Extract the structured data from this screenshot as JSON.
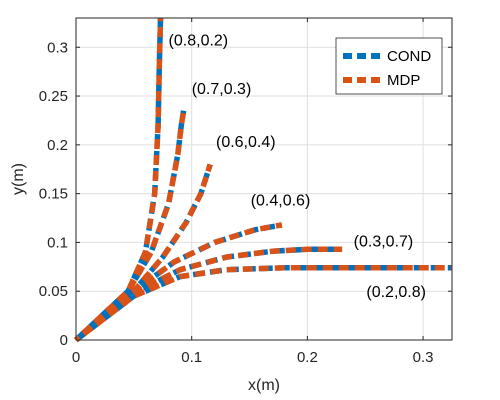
{
  "chart_data": {
    "type": "line",
    "title": "",
    "xlabel": "x(m)",
    "ylabel": "y(m)",
    "xlim": [
      0,
      0.325
    ],
    "ylim": [
      0,
      0.33
    ],
    "xticks": [
      0,
      0.1,
      0.2,
      0.3
    ],
    "xtick_labels": [
      "0",
      "0.1",
      "0.2",
      "0.3"
    ],
    "yticks": [
      0,
      0.05,
      0.1,
      0.15,
      0.2,
      0.25,
      0.3
    ],
    "ytick_labels": [
      "0",
      "0.05",
      "0.1",
      "0.15",
      "0.2",
      "0.25",
      "0.3"
    ],
    "grid": true,
    "legend_placement": "top-right",
    "colors": {
      "COND": "#0072BD",
      "MDP": "#D95319"
    },
    "series": [
      {
        "name": "COND",
        "curves": [
          {
            "x": [
              0,
              0.045,
              0.06,
              0.068,
              0.071,
              0.072,
              0.073
            ],
            "y": [
              0,
              0.05,
              0.09,
              0.15,
              0.22,
              0.28,
              0.33
            ]
          },
          {
            "x": [
              0,
              0.045,
              0.065,
              0.08,
              0.088,
              0.091,
              0.093
            ],
            "y": [
              0,
              0.05,
              0.09,
              0.14,
              0.19,
              0.22,
              0.235
            ]
          },
          {
            "x": [
              0,
              0.05,
              0.075,
              0.095,
              0.108,
              0.116
            ],
            "y": [
              0,
              0.05,
              0.085,
              0.12,
              0.15,
              0.18
            ]
          },
          {
            "x": [
              0,
              0.05,
              0.085,
              0.12,
              0.155,
              0.178
            ],
            "y": [
              0,
              0.05,
              0.08,
              0.1,
              0.113,
              0.118
            ]
          },
          {
            "x": [
              0,
              0.05,
              0.09,
              0.13,
              0.17,
              0.2,
              0.23
            ],
            "y": [
              0,
              0.048,
              0.072,
              0.085,
              0.091,
              0.093,
              0.093
            ]
          },
          {
            "x": [
              0,
              0.05,
              0.09,
              0.13,
              0.18,
              0.23,
              0.28,
              0.325
            ],
            "y": [
              0,
              0.045,
              0.065,
              0.072,
              0.074,
              0.074,
              0.074,
              0.074
            ]
          }
        ]
      },
      {
        "name": "MDP",
        "curves": [
          {
            "x": [
              0,
              0.045,
              0.06,
              0.068,
              0.071,
              0.072,
              0.073
            ],
            "y": [
              0,
              0.05,
              0.09,
              0.15,
              0.22,
              0.28,
              0.33
            ]
          },
          {
            "x": [
              0,
              0.045,
              0.065,
              0.08,
              0.088,
              0.091,
              0.093
            ],
            "y": [
              0,
              0.05,
              0.09,
              0.14,
              0.19,
              0.22,
              0.235
            ]
          },
          {
            "x": [
              0,
              0.05,
              0.075,
              0.095,
              0.108,
              0.116
            ],
            "y": [
              0,
              0.05,
              0.085,
              0.12,
              0.15,
              0.18
            ]
          },
          {
            "x": [
              0,
              0.05,
              0.085,
              0.12,
              0.155,
              0.178
            ],
            "y": [
              0,
              0.05,
              0.08,
              0.1,
              0.113,
              0.118
            ]
          },
          {
            "x": [
              0,
              0.05,
              0.09,
              0.13,
              0.17,
              0.2,
              0.23
            ],
            "y": [
              0,
              0.048,
              0.072,
              0.085,
              0.091,
              0.093,
              0.093
            ]
          },
          {
            "x": [
              0,
              0.05,
              0.09,
              0.13,
              0.18,
              0.23,
              0.28,
              0.325
            ],
            "y": [
              0,
              0.045,
              0.065,
              0.072,
              0.074,
              0.074,
              0.074,
              0.074
            ]
          }
        ]
      }
    ],
    "annotations": [
      {
        "text": "(0.8,0.2)",
        "x": 0.08,
        "y": 0.302
      },
      {
        "text": "(0.7,0.3)",
        "x": 0.1,
        "y": 0.252
      },
      {
        "text": "(0.6,0.4)",
        "x": 0.121,
        "y": 0.198
      },
      {
        "text": "(0.4,0.6)",
        "x": 0.151,
        "y": 0.138
      },
      {
        "text": "(0.3,0.7)",
        "x": 0.24,
        "y": 0.096
      },
      {
        "text": "(0.2,0.8)",
        "x": 0.251,
        "y": 0.044
      }
    ]
  }
}
